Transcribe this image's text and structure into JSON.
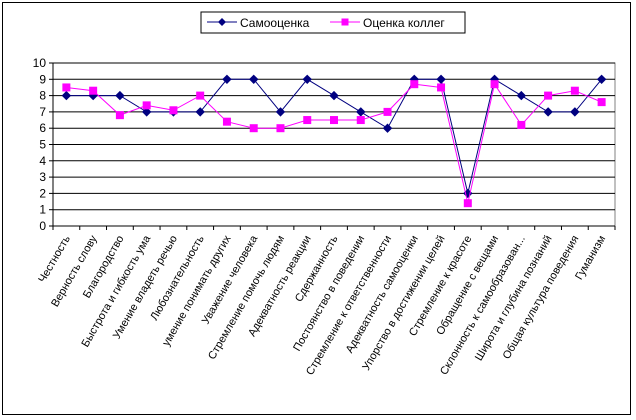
{
  "chart_data": {
    "type": "line",
    "categories": [
      "Честность",
      "Верность слову",
      "Благородство",
      "Быстрота и гибкость ума",
      "Умение владеть речью",
      "Любознательность",
      "умение понимать других",
      "Уважение человека",
      "Стремление помочь людям",
      "Адекватность реакции",
      "Сдержанность",
      "Постоянство в поведении",
      "Стремление к ответственности",
      "Адекватность самооценки",
      "Упорство в достижении целей",
      "Стремление к красоте",
      "Обращение с вещами",
      "Склонность к самообразован...",
      "Широта и глубина познаний",
      "Общая культура поведения",
      "Гуманизм"
    ],
    "series": [
      {
        "name": "Самооценка",
        "color": "#000080",
        "marker": "diamond",
        "values": [
          8,
          8,
          8,
          7,
          7,
          7,
          9,
          9,
          7,
          9,
          8,
          7,
          6,
          9,
          9,
          2,
          9,
          8,
          7,
          7,
          9
        ]
      },
      {
        "name": "Оценка коллег",
        "color": "#ff00ff",
        "marker": "square",
        "values": [
          8.5,
          8.3,
          6.8,
          7.4,
          7.1,
          8.0,
          6.4,
          6.0,
          6.0,
          6.5,
          6.5,
          6.5,
          7.0,
          8.7,
          8.5,
          1.4,
          8.7,
          6.2,
          8.0,
          8.3,
          7.6
        ]
      }
    ],
    "yticks": [
      "0",
      "1",
      "2",
      "3",
      "4",
      "5",
      "6",
      "7",
      "8",
      "9",
      "10"
    ],
    "ylim": [
      0,
      10
    ],
    "grid": true,
    "legend_position": "top-center",
    "title": "",
    "xlabel": "",
    "ylabel": ""
  }
}
